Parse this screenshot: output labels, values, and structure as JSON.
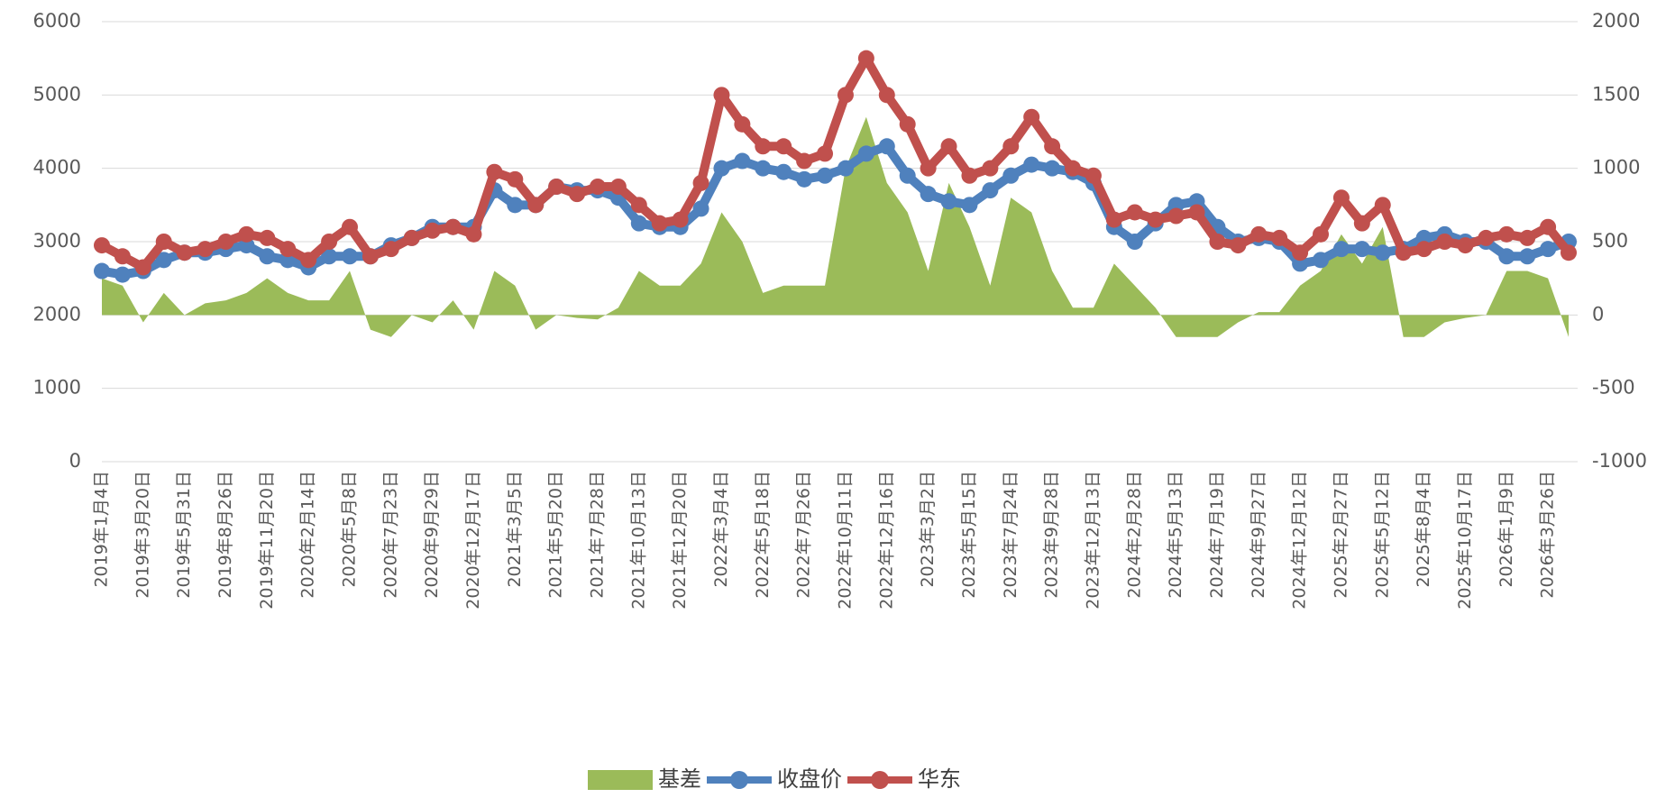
{
  "chart_data": {
    "type": "combo",
    "categories": [
      "2019年1月4日",
      null,
      "2019年3月20日",
      null,
      "2019年5月31日",
      null,
      "2019年8月26日",
      null,
      "2019年11月20日",
      null,
      "2020年2月14日",
      null,
      "2020年5月8日",
      null,
      "2020年7月23日",
      null,
      "2020年9月29日",
      null,
      "2020年12月17日",
      null,
      "2021年3月5日",
      null,
      "2021年5月20日",
      null,
      "2021年7月28日",
      null,
      "2021年10月13日",
      null,
      "2021年12月20日",
      null,
      "2022年3月4日",
      null,
      "2022年5月18日",
      null,
      "2022年7月26日",
      null,
      "2022年10月11日",
      null,
      "2022年12月16日",
      null,
      "2023年3月2日",
      null,
      "2023年5月15日",
      null,
      "2023年7月24日",
      null,
      "2023年9月28日",
      null,
      "2023年12月13日",
      null,
      "2024年2月28日",
      null,
      "2024年5月13日",
      null,
      "2024年7月19日",
      null,
      "2024年9月27日",
      null,
      "2024年12月12日",
      null,
      "2025年2月27日",
      null,
      "2025年5月12日",
      null,
      "2025年8月4日",
      null,
      "2025年10月17日",
      null,
      "2026年1月9日",
      null,
      "2026年3月26日",
      null
    ],
    "series": [
      {
        "name": "基差",
        "kind": "area",
        "axis": "y2",
        "color": "#9bbb59",
        "values": [
          250,
          200,
          -50,
          150,
          0,
          80,
          100,
          150,
          250,
          150,
          100,
          100,
          300,
          -100,
          -150,
          0,
          -50,
          100,
          -100,
          300,
          200,
          -100,
          0,
          -20,
          -30,
          50,
          300,
          200,
          200,
          350,
          700,
          500,
          150,
          200,
          200,
          200,
          1000,
          1350,
          900,
          700,
          300,
          900,
          600,
          200,
          800,
          700,
          300,
          50,
          50,
          350,
          200,
          50,
          -150,
          -150,
          -150,
          -50,
          20,
          20,
          200,
          300,
          550,
          350,
          600,
          -150,
          -150,
          -50,
          -20,
          0,
          300,
          300,
          250,
          -150
        ]
      },
      {
        "name": "收盘价",
        "kind": "line",
        "color": "#4f81bd",
        "values": [
          2600,
          2550,
          2600,
          2750,
          2850,
          2850,
          2900,
          2950,
          2800,
          2750,
          2650,
          2800,
          2800,
          2800,
          2950,
          3050,
          3200,
          3200,
          3200,
          3700,
          3500,
          3500,
          3750,
          3700,
          3700,
          3600,
          3250,
          3200,
          3200,
          3450,
          4000,
          4100,
          4000,
          3950,
          3850,
          3900,
          4000,
          4200,
          4300,
          3900,
          3650,
          3550,
          3500,
          3700,
          3900,
          4050,
          4000,
          3950,
          3800,
          3200,
          3000,
          3250,
          3500,
          3550,
          3200,
          3000,
          3050,
          3000,
          2700,
          2750,
          2900,
          2900,
          2850,
          2900,
          3050,
          3100,
          3000,
          3000,
          2800,
          2800,
          2900,
          3000
        ]
      },
      {
        "name": "华东",
        "kind": "line",
        "color": "#c0504d",
        "values": [
          2950,
          2800,
          2650,
          3000,
          2850,
          2900,
          3000,
          3100,
          3050,
          2900,
          2750,
          3000,
          3200,
          2800,
          2900,
          3050,
          3150,
          3200,
          3100,
          3950,
          3850,
          3500,
          3750,
          3650,
          3750,
          3750,
          3500,
          3250,
          3300,
          3800,
          5000,
          4600,
          4300,
          4300,
          4100,
          4200,
          5000,
          5500,
          5000,
          4600,
          4000,
          4300,
          3900,
          4000,
          4300,
          4700,
          4300,
          4000,
          3900,
          3300,
          3400,
          3300,
          3350,
          3400,
          3000,
          2950,
          3100,
          3050,
          2850,
          3100,
          3600,
          3250,
          3500,
          2850,
          2900,
          3000,
          2950,
          3050,
          3100,
          3050,
          3200,
          2850
        ]
      }
    ],
    "ylim": [
      0,
      6000
    ],
    "yticks": [
      0,
      1000,
      2000,
      3000,
      4000,
      5000,
      6000
    ],
    "y2lim": [
      -1000,
      2000
    ],
    "y2ticks": [
      -1000,
      -500,
      0,
      500,
      1000,
      1500,
      2000
    ],
    "grid": true,
    "legend": "bottom"
  }
}
